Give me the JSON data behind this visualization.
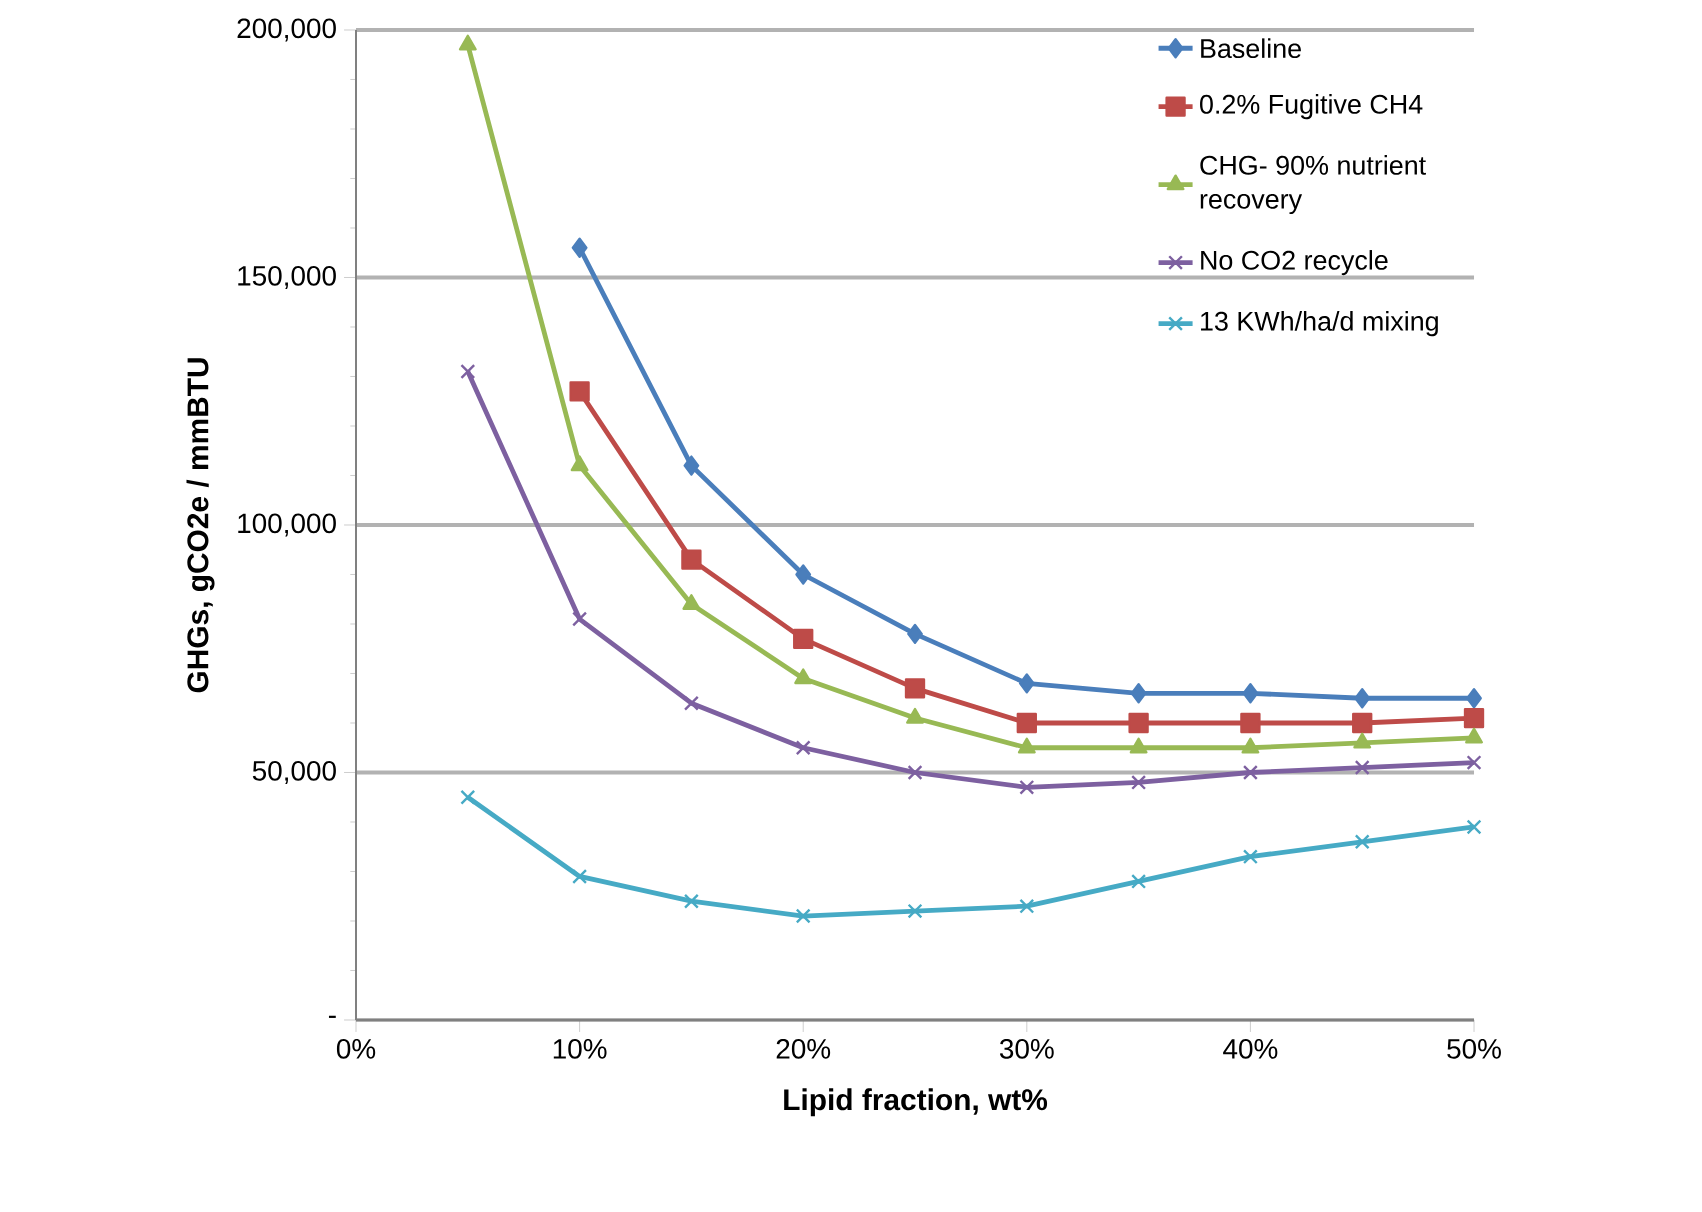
{
  "chart_data": {
    "type": "line",
    "xlabel": "Lipid fraction, wt%",
    "ylabel": "GHGs, gCO2e / mmBTU",
    "x": [
      5,
      10,
      15,
      20,
      25,
      30,
      35,
      40,
      45,
      50
    ],
    "xlim": [
      0,
      50
    ],
    "ylim": [
      0,
      200000
    ],
    "xticks": [
      {
        "value": 0,
        "label": "0%"
      },
      {
        "value": 10,
        "label": "10%"
      },
      {
        "value": 20,
        "label": "20%"
      },
      {
        "value": 30,
        "label": "30%"
      },
      {
        "value": 40,
        "label": "40%"
      },
      {
        "value": 50,
        "label": "50%"
      }
    ],
    "yticks": [
      {
        "value": 0,
        "label": "-"
      },
      {
        "value": 50000,
        "label": "50,000"
      },
      {
        "value": 100000,
        "label": "100,000"
      },
      {
        "value": 150000,
        "label": "150,000"
      },
      {
        "value": 200000,
        "label": "200,000"
      }
    ],
    "grid": "y",
    "legend": "top right",
    "series": [
      {
        "name": "Baseline",
        "color": "#4a7ebb",
        "marker": "diamond",
        "values": [
          null,
          156000,
          112000,
          90000,
          78000,
          68000,
          66000,
          66000,
          65000,
          65000
        ]
      },
      {
        "name": "0.2% Fugitive CH4",
        "color": "#be4b48",
        "marker": "square",
        "values": [
          null,
          127000,
          93000,
          77000,
          67000,
          60000,
          60000,
          60000,
          60000,
          61000
        ]
      },
      {
        "name": "CHG- 90% nutrient recovery",
        "color": "#98b954",
        "marker": "triangle",
        "values": [
          197000,
          112000,
          84000,
          69000,
          61000,
          55000,
          55000,
          55000,
          56000,
          57000
        ]
      },
      {
        "name": "No CO2 recycle",
        "color": "#7d60a0",
        "marker": "cross",
        "values": [
          131000,
          81000,
          64000,
          55000,
          50000,
          47000,
          48000,
          50000,
          51000,
          52000
        ]
      },
      {
        "name": "13 KWh/ha/d mixing",
        "color": "#46aac5",
        "marker": "cross",
        "values": [
          45000,
          29000,
          24000,
          21000,
          22000,
          23000,
          28000,
          33000,
          36000,
          39000
        ]
      }
    ]
  }
}
